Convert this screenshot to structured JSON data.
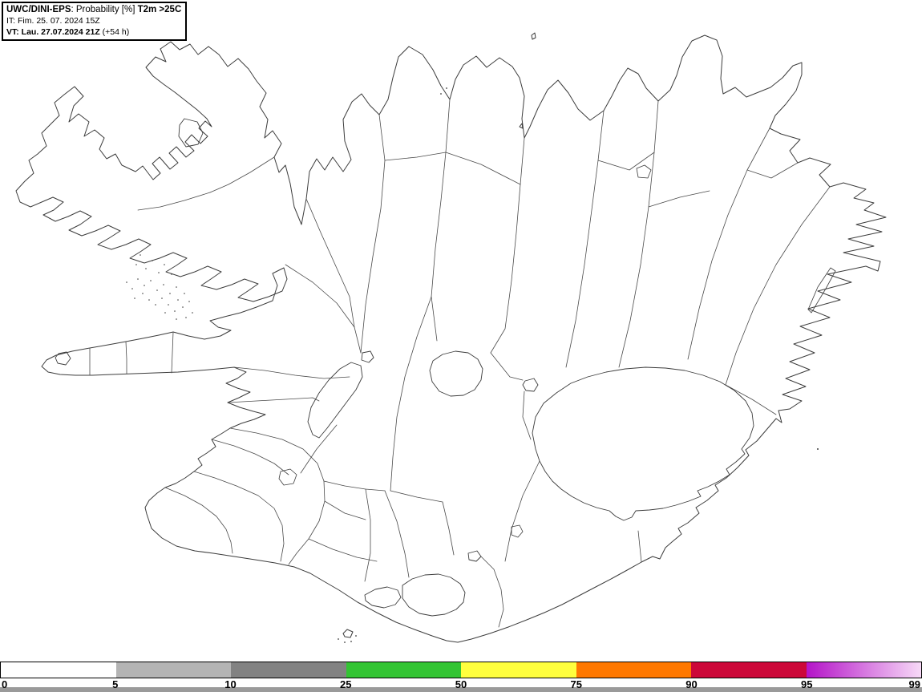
{
  "title_box": {
    "model": "UWC/DINI-EPS",
    "product": ": Probability [%] ",
    "parameter": "T2m >25C",
    "init_line": "IT: Fim. 25. 07. 2024 15Z",
    "valid_bold": "VT: Lau. 27.07.2024 21Z",
    "valid_suffix": " (+54 h)"
  },
  "map": {
    "region": "Iceland",
    "background": "#ffffff",
    "line_color": "#3c3c3c"
  },
  "colorbar": {
    "unit": "%",
    "ticks": [
      "0",
      "5",
      "10",
      "25",
      "50",
      "75",
      "90",
      "95",
      "99"
    ],
    "segments": [
      {
        "range": "0-5",
        "color": "#ffffff"
      },
      {
        "range": "5-10",
        "color": "#b4b4b4"
      },
      {
        "range": "10-25",
        "color": "#828282"
      },
      {
        "range": "25-50",
        "color": "#33c433"
      },
      {
        "range": "50-75",
        "color": "#ffff3e"
      },
      {
        "range": "75-90",
        "color": "#ff7800"
      },
      {
        "range": "90-95",
        "color": "#cc0839"
      },
      {
        "range": "95-99",
        "gradient": true,
        "color_start": "#b414c8",
        "color_end": "#f7d9f7"
      }
    ]
  }
}
